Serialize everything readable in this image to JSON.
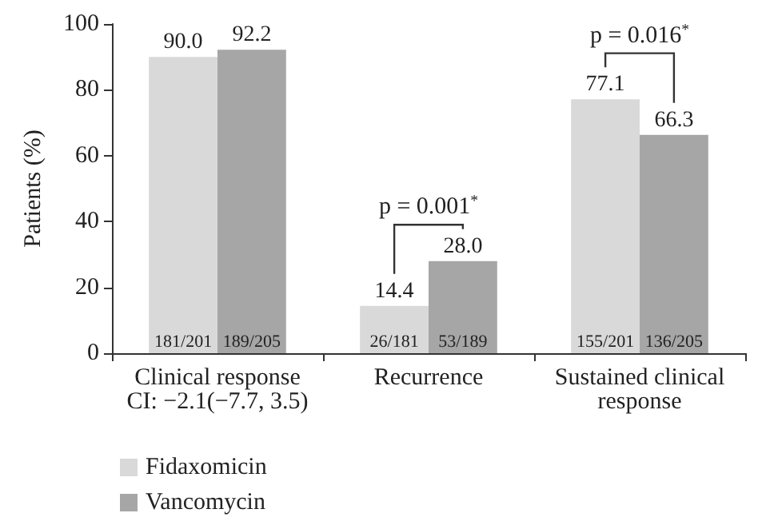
{
  "chart_data": {
    "type": "bar",
    "ylabel": "Patients (%)",
    "categories": [
      "Clinical response\nCI: −2.1(−7.7, 3.5)",
      "Recurrence",
      "Sustained clinical\nresponse"
    ],
    "series": [
      {
        "name": "Fidaxomicin",
        "color": "#d9d9d9",
        "values": [
          90.0,
          14.4,
          77.1
        ],
        "value_labels": [
          "90.0",
          "14.4",
          "77.1"
        ]
      },
      {
        "name": "Vancomycin",
        "color": "#a6a6a6",
        "values": [
          92.2,
          28.0,
          66.3
        ],
        "value_labels": [
          "92.2",
          "28.0",
          "66.3"
        ]
      }
    ],
    "ylim": [
      0,
      100
    ],
    "yticks": [
      0,
      20,
      40,
      60,
      80,
      100
    ],
    "grid": false,
    "legend": "bottom left",
    "annotations": [
      "181/201",
      "189/205",
      "26/181",
      "53/189",
      "155/201",
      "136/205",
      "p = 0.001$^{*}$",
      "p = 0.016$^{*}$"
    ]
  }
}
